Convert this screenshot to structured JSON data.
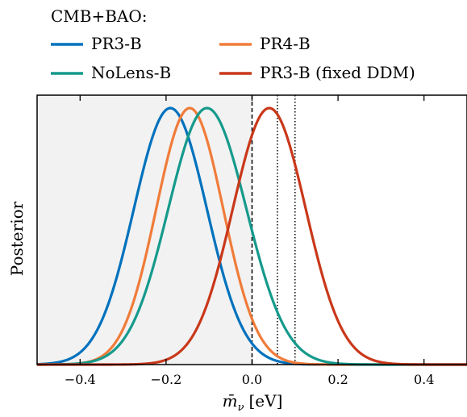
{
  "chart_data": {
    "type": "line",
    "legend_title": "CMB+BAO:",
    "legend_placement": "top, above plot, two columns",
    "xlabel": "m̄",
    "xlabel_sub": "ν",
    "xlabel_unit": "[eV]",
    "ylabel": "Posterior",
    "xlim": [
      -0.5,
      0.5
    ],
    "ylim": [
      0,
      1.05
    ],
    "grid": false,
    "x_ticks": [
      -0.4,
      -0.2,
      0.0,
      0.2,
      0.4
    ],
    "x_tick_labels": [
      "−0.4",
      "−0.2",
      "0.0",
      "0.2",
      "0.4"
    ],
    "shaded_region": {
      "x_from": -0.5,
      "x_to": 0.0,
      "color": "#f2f2f2"
    },
    "vlines": [
      {
        "x": 0.0,
        "style": "dashed"
      },
      {
        "x": 0.059,
        "style": "dotted"
      },
      {
        "x": 0.1,
        "style": "dotted"
      }
    ],
    "series": [
      {
        "name": "PR3-B",
        "color": "#0072bd",
        "peak_x": -0.19,
        "sigma_left": 0.085,
        "sigma_right": 0.085,
        "peak_y": 1.0
      },
      {
        "name": "PR4-B",
        "color": "#f07c3a",
        "peak_x": -0.145,
        "sigma_left": 0.078,
        "sigma_right": 0.078,
        "peak_y": 1.0
      },
      {
        "name": "NoLens-B",
        "color": "#159a8c",
        "peak_x": -0.105,
        "sigma_left": 0.09,
        "sigma_right": 0.092,
        "peak_y": 1.0
      },
      {
        "name": "PR3-B (fixed DDM)",
        "color": "#c9381a",
        "peak_x": 0.04,
        "sigma_left": 0.085,
        "sigma_right": 0.085,
        "peak_y": 1.0
      }
    ]
  }
}
